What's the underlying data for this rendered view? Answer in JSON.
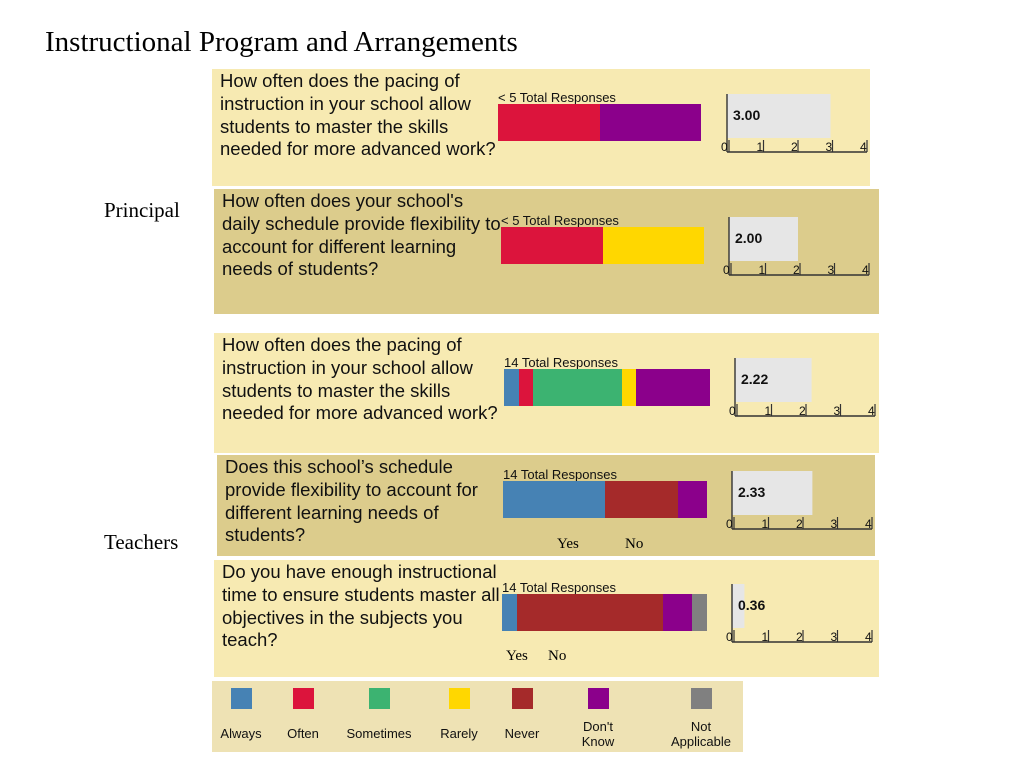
{
  "title": "Instructional Program and Arrangements",
  "groups": {
    "principal": "Principal",
    "teachers": "Teachers"
  },
  "colors": {
    "Always": "#4682b4",
    "Often": "#dc143c",
    "Sometimes": "#3cb371",
    "Rarely": "#ffd700",
    "Never": "#a52a2a",
    "Don't Know": "#8b008b",
    "Not Applicable": "#808080",
    "mean_bg": "#e6e6e6"
  },
  "legend": [
    {
      "key": "Always",
      "label": "Always"
    },
    {
      "key": "Often",
      "label": "Often"
    },
    {
      "key": "Sometimes",
      "label": "Sometimes"
    },
    {
      "key": "Rarely",
      "label": "Rarely"
    },
    {
      "key": "Never",
      "label": "Never"
    },
    {
      "key": "Don't Know",
      "label": "Don't\nKnow"
    },
    {
      "key": "Not Applicable",
      "label": "Not\nApplicable"
    }
  ],
  "chart_data": [
    {
      "type": "bar",
      "group": "Principal",
      "question": "How often does the pacing of instruction in your school allow students to master the skills needed for more advanced work?",
      "responses_label": "< 5 Total Responses",
      "segments": [
        {
          "category": "Often",
          "share": 0.5
        },
        {
          "category": "Don't Know",
          "share": 0.5
        }
      ],
      "mean": 3.0,
      "mean_label": "3.00",
      "ticks": [
        "0",
        "1",
        "2",
        "3",
        "4"
      ],
      "xlim": [
        0,
        4
      ]
    },
    {
      "type": "bar",
      "group": "Principal",
      "question": "How often does your school's daily schedule provide flexibility to account for different learning needs of students?",
      "responses_label": "< 5 Total Responses",
      "segments": [
        {
          "category": "Often",
          "share": 0.5
        },
        {
          "category": "Rarely",
          "share": 0.5
        }
      ],
      "mean": 2.0,
      "mean_label": "2.00",
      "ticks": [
        "0",
        "1",
        "2",
        "3",
        "4"
      ],
      "xlim": [
        0,
        4
      ]
    },
    {
      "type": "bar",
      "group": "Teachers",
      "question": "How often does the pacing of instruction in your school allow students to master the skills needed for more advanced work?",
      "responses_label": "14 Total Responses",
      "segments": [
        {
          "category": "Always",
          "share": 0.071
        },
        {
          "category": "Often",
          "share": 0.071
        },
        {
          "category": "Sometimes",
          "share": 0.429
        },
        {
          "category": "Rarely",
          "share": 0.071
        },
        {
          "category": "Don't Know",
          "share": 0.357
        }
      ],
      "mean": 2.22,
      "mean_label": "2.22",
      "ticks": [
        "0",
        "1",
        "2",
        "3",
        "4"
      ],
      "xlim": [
        0,
        4
      ]
    },
    {
      "type": "bar",
      "group": "Teachers",
      "question": "Does this school’s schedule provide flexibility to account for different learning needs of students?",
      "responses_label": "14 Total Responses",
      "segments": [
        {
          "category": "Always",
          "share": 0.5
        },
        {
          "category": "Never",
          "share": 0.357
        },
        {
          "category": "Don't Know",
          "share": 0.143
        }
      ],
      "mean": 2.33,
      "mean_label": "2.33",
      "ticks": [
        "0",
        "1",
        "2",
        "3",
        "4"
      ],
      "xlim": [
        0,
        4
      ],
      "answer_labels": [
        "Yes",
        "No"
      ]
    },
    {
      "type": "bar",
      "group": "Teachers",
      "question": "Do you have enough instructional time to ensure students master all objectives in the subjects you teach?",
      "responses_label": "14 Total Responses",
      "segments": [
        {
          "category": "Always",
          "share": 0.071
        },
        {
          "category": "Never",
          "share": 0.714
        },
        {
          "category": "Don't Know",
          "share": 0.143
        },
        {
          "category": "Not Applicable",
          "share": 0.071
        }
      ],
      "mean": 0.36,
      "mean_label": "0.36",
      "ticks": [
        "0",
        "1",
        "2",
        "3",
        "4"
      ],
      "xlim": [
        0,
        4
      ],
      "answer_labels": [
        "Yes",
        "No"
      ]
    }
  ]
}
